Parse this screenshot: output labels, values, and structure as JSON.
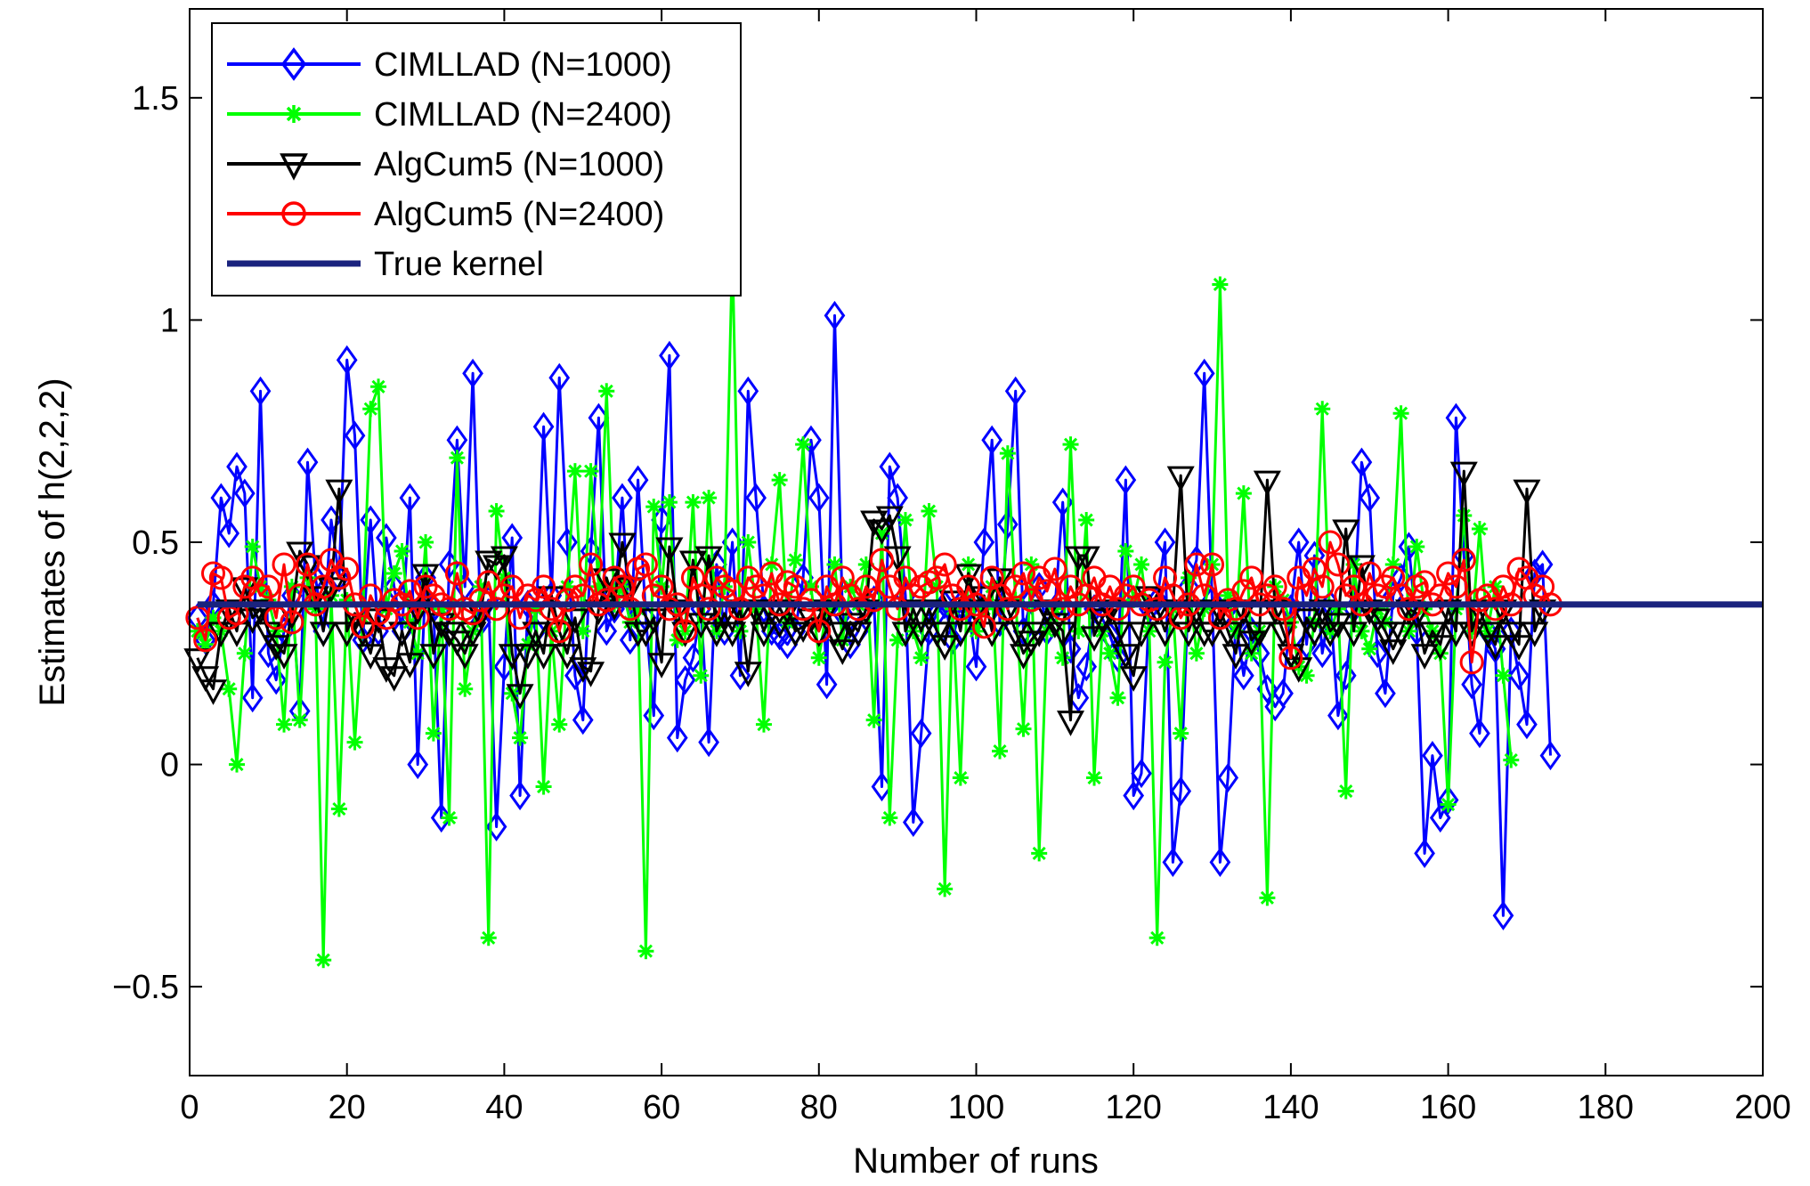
{
  "chart_data": {
    "type": "line",
    "title": "",
    "xlabel": "Number of runs",
    "ylabel": "Estimates of h(2,2,2)",
    "xlim": [
      0,
      200
    ],
    "ylim": [
      -0.7,
      1.7
    ],
    "xticks": [
      0,
      20,
      40,
      60,
      80,
      100,
      120,
      140,
      160,
      180,
      200
    ],
    "yticks": [
      -0.5,
      0,
      0.5,
      1,
      1.5
    ],
    "xtick_labels": [
      "0",
      "20",
      "40",
      "60",
      "80",
      "100",
      "120",
      "140",
      "160",
      "180",
      "200"
    ],
    "ytick_labels": [
      "−0.5",
      "0",
      "0.5",
      "1",
      "1.5"
    ],
    "grid": false,
    "legend_position": "top-left",
    "series": [
      {
        "name": "CIMLLAD (N=1000)",
        "color": "#0000ff",
        "marker": "diamond",
        "values": [
          0.33,
          0.28,
          0.36,
          0.6,
          0.52,
          0.67,
          0.61,
          0.15,
          0.84,
          0.25,
          0.19,
          0.3,
          0.38,
          0.12,
          0.68,
          0.42,
          0.3,
          0.55,
          0.42,
          0.91,
          0.74,
          0.28,
          0.55,
          0.3,
          0.51,
          0.4,
          0.3,
          0.6,
          0.0,
          0.42,
          0.35,
          -0.12,
          0.45,
          0.73,
          0.4,
          0.88,
          0.32,
          0.37,
          -0.14,
          0.22,
          0.51,
          -0.07,
          0.36,
          0.3,
          0.76,
          0.38,
          0.87,
          0.5,
          0.2,
          0.1,
          0.48,
          0.78,
          0.3,
          0.35,
          0.6,
          0.28,
          0.64,
          0.33,
          0.11,
          0.55,
          0.92,
          0.06,
          0.19,
          0.24,
          0.35,
          0.05,
          0.45,
          0.3,
          0.5,
          0.2,
          0.84,
          0.6,
          0.35,
          0.3,
          0.29,
          0.27,
          0.3,
          0.42,
          0.73,
          0.6,
          0.18,
          1.01,
          0.34,
          0.27,
          0.3,
          0.35,
          0.37,
          -0.05,
          0.67,
          0.6,
          0.38,
          -0.13,
          0.07,
          0.3,
          0.34,
          0.36,
          0.28,
          0.36,
          0.35,
          0.22,
          0.5,
          0.73,
          0.32,
          0.54,
          0.84,
          0.3,
          0.37,
          0.4,
          0.3,
          0.35,
          0.59,
          0.26,
          0.15,
          0.22,
          0.35,
          0.33,
          0.29,
          0.24,
          0.64,
          -0.07,
          -0.02,
          0.35,
          0.37,
          0.5,
          -0.22,
          -0.06,
          0.4,
          0.46,
          0.88,
          0.37,
          -0.22,
          -0.03,
          0.32,
          0.2,
          0.3,
          0.25,
          0.17,
          0.13,
          0.16,
          0.35,
          0.5,
          0.27,
          0.47,
          0.25,
          0.36,
          0.11,
          0.2,
          0.35,
          0.68,
          0.6,
          0.25,
          0.16,
          0.38,
          0.42,
          0.49,
          0.3,
          -0.2,
          0.02,
          -0.12,
          -0.08,
          0.78,
          0.47,
          0.18,
          0.07,
          0.3,
          0.26,
          -0.34,
          0.3,
          0.2,
          0.09,
          0.43,
          0.45,
          0.02
        ]
      },
      {
        "name": "CIMLLAD (N=2400)",
        "color": "#00ff00",
        "marker": "asterisk",
        "values": [
          0.3,
          0.27,
          0.33,
          0.3,
          0.17,
          0.0,
          0.25,
          0.49,
          0.4,
          0.37,
          0.3,
          0.09,
          0.4,
          0.1,
          0.42,
          0.35,
          -0.44,
          0.38,
          -0.1,
          0.37,
          0.05,
          0.33,
          0.8,
          0.85,
          0.35,
          0.43,
          0.48,
          0.32,
          0.25,
          0.5,
          0.07,
          0.35,
          -0.12,
          0.69,
          0.17,
          0.3,
          0.4,
          -0.39,
          0.57,
          0.42,
          0.16,
          0.06,
          0.27,
          0.35,
          -0.05,
          0.3,
          0.09,
          0.4,
          0.66,
          0.3,
          0.66,
          0.4,
          0.84,
          0.36,
          0.4,
          0.32,
          0.35,
          -0.42,
          0.58,
          0.4,
          0.59,
          0.28,
          0.3,
          0.59,
          0.2,
          0.6,
          0.3,
          0.4,
          1.16,
          0.3,
          0.5,
          0.35,
          0.09,
          0.45,
          0.64,
          0.32,
          0.46,
          0.72,
          0.4,
          0.24,
          0.35,
          0.45,
          0.28,
          0.4,
          0.36,
          0.45,
          0.1,
          0.52,
          -0.12,
          0.28,
          0.55,
          0.3,
          0.24,
          0.57,
          0.4,
          -0.28,
          0.35,
          -0.03,
          0.45,
          0.3,
          0.35,
          0.4,
          0.03,
          0.7,
          0.37,
          0.08,
          0.45,
          -0.2,
          0.3,
          0.35,
          0.24,
          0.72,
          0.3,
          0.55,
          -0.03,
          0.3,
          0.25,
          0.15,
          0.48,
          0.37,
          0.45,
          0.3,
          -0.39,
          0.23,
          0.35,
          0.07,
          0.42,
          0.25,
          0.35,
          0.45,
          1.08,
          0.38,
          0.3,
          0.61,
          0.25,
          0.3,
          -0.3,
          0.4,
          0.37,
          0.32,
          0.22,
          0.2,
          0.32,
          0.8,
          0.3,
          0.35,
          -0.06,
          0.45,
          0.3,
          0.26,
          0.35,
          0.32,
          0.45,
          0.79,
          0.3,
          0.49,
          0.35,
          0.3,
          0.25,
          -0.09,
          0.35,
          0.56,
          0.3,
          0.53,
          0.3,
          0.4,
          0.2,
          0.01
        ]
      },
      {
        "name": "AlgCum5 (N=1000)",
        "color": "#000000",
        "marker": "triangle-down",
        "values": [
          0.24,
          0.2,
          0.17,
          0.3,
          0.35,
          0.3,
          0.4,
          0.33,
          0.35,
          0.3,
          0.27,
          0.25,
          0.34,
          0.48,
          0.45,
          0.38,
          0.3,
          0.4,
          0.62,
          0.3,
          0.34,
          0.3,
          0.25,
          0.33,
          0.22,
          0.2,
          0.3,
          0.23,
          0.35,
          0.43,
          0.25,
          0.32,
          0.3,
          0.28,
          0.25,
          0.3,
          0.34,
          0.46,
          0.45,
          0.47,
          0.25,
          0.16,
          0.25,
          0.3,
          0.25,
          0.38,
          0.3,
          0.25,
          0.33,
          0.22,
          0.21,
          0.35,
          0.42,
          0.36,
          0.5,
          0.4,
          0.3,
          0.3,
          0.33,
          0.23,
          0.49,
          0.35,
          0.3,
          0.46,
          0.32,
          0.47,
          0.3,
          0.34,
          0.3,
          0.35,
          0.21,
          0.35,
          0.3,
          0.35,
          0.32,
          0.35,
          0.3,
          0.31,
          0.33,
          0.3,
          0.35,
          0.3,
          0.26,
          0.32,
          0.3,
          0.35,
          0.55,
          0.53,
          0.56,
          0.47,
          0.3,
          0.35,
          0.3,
          0.35,
          0.3,
          0.27,
          0.37,
          0.3,
          0.43,
          0.35,
          0.38,
          0.3,
          0.42,
          0.35,
          0.3,
          0.25,
          0.28,
          0.3,
          0.35,
          0.32,
          0.3,
          0.1,
          0.47,
          0.47,
          0.29,
          0.33,
          0.35,
          0.3,
          0.25,
          0.2,
          0.3,
          0.38,
          0.35,
          0.3,
          0.35,
          0.65,
          0.3,
          0.35,
          0.3,
          0.3,
          0.35,
          0.3,
          0.25,
          0.35,
          0.28,
          0.3,
          0.64,
          0.35,
          0.3,
          0.25,
          0.22,
          0.33,
          0.3,
          0.35,
          0.3,
          0.32,
          0.53,
          0.3,
          0.45,
          0.35,
          0.33,
          0.3,
          0.26,
          0.3,
          0.35,
          0.34,
          0.25,
          0.3,
          0.27,
          0.35,
          0.3,
          0.66,
          0.3,
          0.35,
          0.3,
          0.27,
          0.35,
          0.3,
          0.27,
          0.62,
          0.3,
          0.35
        ]
      },
      {
        "name": "AlgCum5 (N=2400)",
        "color": "#ff0000",
        "marker": "circle",
        "values": [
          0.33,
          0.28,
          0.43,
          0.42,
          0.33,
          0.34,
          0.4,
          0.42,
          0.38,
          0.4,
          0.33,
          0.45,
          0.32,
          0.38,
          0.45,
          0.36,
          0.4,
          0.46,
          0.42,
          0.44,
          0.36,
          0.31,
          0.38,
          0.34,
          0.33,
          0.37,
          0.36,
          0.39,
          0.33,
          0.4,
          0.38,
          0.36,
          0.35,
          0.43,
          0.35,
          0.34,
          0.37,
          0.41,
          0.35,
          0.38,
          0.4,
          0.33,
          0.38,
          0.37,
          0.4,
          0.35,
          0.3,
          0.37,
          0.4,
          0.38,
          0.45,
          0.36,
          0.37,
          0.42,
          0.4,
          0.35,
          0.44,
          0.45,
          0.38,
          0.4,
          0.35,
          0.36,
          0.3,
          0.42,
          0.38,
          0.35,
          0.42,
          0.4,
          0.39,
          0.35,
          0.42,
          0.4,
          0.38,
          0.43,
          0.36,
          0.41,
          0.4,
          0.35,
          0.37,
          0.3,
          0.4,
          0.36,
          0.42,
          0.38,
          0.35,
          0.4,
          0.37,
          0.46,
          0.4,
          0.35,
          0.42,
          0.38,
          0.4,
          0.41,
          0.42,
          0.45,
          0.38,
          0.35,
          0.4,
          0.36,
          0.31,
          0.42,
          0.38,
          0.35,
          0.4,
          0.43,
          0.37,
          0.42,
          0.39,
          0.44,
          0.35,
          0.4,
          0.36,
          0.38,
          0.42,
          0.36,
          0.4,
          0.35,
          0.38,
          0.4,
          0.36,
          0.37,
          0.35,
          0.42,
          0.38,
          0.33,
          0.36,
          0.45,
          0.38,
          0.45,
          0.33,
          0.37,
          0.35,
          0.39,
          0.42,
          0.36,
          0.38,
          0.4,
          0.35,
          0.24,
          0.42,
          0.38,
          0.44,
          0.4,
          0.5,
          0.45,
          0.38,
          0.4,
          0.36,
          0.43,
          0.38,
          0.4,
          0.42,
          0.38,
          0.35,
          0.4,
          0.41,
          0.36,
          0.38,
          0.43,
          0.4,
          0.46,
          0.23,
          0.37,
          0.38,
          0.35,
          0.4,
          0.36,
          0.44,
          0.42,
          0.38,
          0.4,
          0.36
        ]
      },
      {
        "name": "True kernel",
        "color": "#1a237e",
        "marker": "none",
        "value": 0.36
      }
    ]
  }
}
